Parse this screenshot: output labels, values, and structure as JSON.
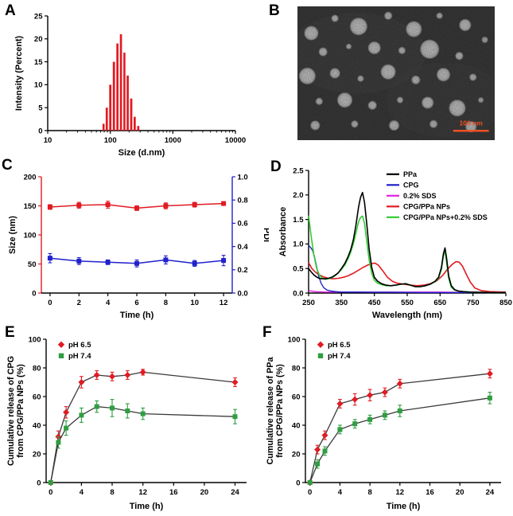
{
  "figure": {
    "background": "#ffffff",
    "panels": [
      {
        "label": "A"
      },
      {
        "label": "B"
      },
      {
        "label": "C"
      },
      {
        "label": "D"
      },
      {
        "label": "E"
      },
      {
        "label": "F"
      }
    ]
  },
  "tem_image": {
    "scale_bar_label": "100 nm",
    "scale_bar_color": "#f05123",
    "background": "#4a4a4a",
    "particles": [
      [
        7,
        20,
        9,
        0.95
      ],
      [
        19,
        9,
        4.5,
        0.9
      ],
      [
        31,
        15,
        11,
        0.97
      ],
      [
        46,
        7,
        5,
        0.88
      ],
      [
        59,
        17,
        10,
        0.96
      ],
      [
        72,
        7,
        4,
        0.85
      ],
      [
        85,
        14,
        7.5,
        0.95
      ],
      [
        95,
        25,
        4,
        0.8
      ],
      [
        13,
        34,
        5.5,
        0.9
      ],
      [
        26,
        30,
        3.5,
        0.85
      ],
      [
        39,
        31,
        8,
        0.95
      ],
      [
        53,
        33,
        4.5,
        0.88
      ],
      [
        67,
        32,
        12,
        0.97
      ],
      [
        82,
        37,
        5,
        0.9
      ],
      [
        5,
        52,
        10.5,
        0.96
      ],
      [
        19,
        50,
        6.5,
        0.92
      ],
      [
        32,
        54,
        4,
        0.86
      ],
      [
        46,
        49,
        9.5,
        0.96
      ],
      [
        60,
        55,
        5.5,
        0.9
      ],
      [
        74,
        51,
        8.5,
        0.95
      ],
      [
        89,
        53,
        4.5,
        0.87
      ],
      [
        11,
        71,
        4.5,
        0.88
      ],
      [
        24,
        70,
        9.5,
        0.96
      ],
      [
        38,
        74,
        5.5,
        0.9
      ],
      [
        52,
        70,
        4,
        0.85
      ],
      [
        66,
        72,
        7.5,
        0.94
      ],
      [
        81,
        76,
        10.5,
        0.96
      ],
      [
        93,
        70,
        3.5,
        0.8
      ],
      [
        29,
        88,
        4.5,
        0.86
      ],
      [
        49,
        89,
        6.5,
        0.92
      ],
      [
        69,
        88,
        5,
        0.88
      ],
      [
        88,
        90,
        7,
        0.93
      ],
      [
        9,
        89,
        6,
        0.9
      ]
    ]
  },
  "chart_data": [
    {
      "id": "A",
      "type": "bar",
      "xscale": "log",
      "xlabel": "Size (d.nm)",
      "ylabel": "Intensity (Percent)",
      "xlim": [
        10,
        10000
      ],
      "xticks": [
        10,
        100,
        1000,
        10000
      ],
      "xtick_labels": [
        "10",
        "100",
        "1000",
        "10000"
      ],
      "ylim": [
        0,
        25
      ],
      "yticks": [
        0,
        5,
        10,
        15,
        20,
        25
      ],
      "ytick_labels": [
        "0",
        "5",
        "10",
        "15",
        "20",
        "25"
      ],
      "bar_color": "#e11b22",
      "bars": {
        "x": [
          78,
          88,
          100,
          114,
          130,
          148,
          168,
          190,
          216,
          246,
          280
        ],
        "values": [
          1.5,
          5,
          10,
          15,
          19,
          21,
          17,
          12,
          7,
          3,
          1
        ]
      }
    },
    {
      "id": "C",
      "type": "line",
      "xlabel": "Time (h)",
      "ylabel": "Size (nm)",
      "ylabel_right": "PDI",
      "xlim": [
        -0.6,
        12.6
      ],
      "xticks": [
        0,
        2,
        4,
        6,
        8,
        10,
        12
      ],
      "xtick_labels": [
        "0",
        "2",
        "4",
        "6",
        "8",
        "10",
        "12"
      ],
      "ylim": [
        0,
        200
      ],
      "yticks": [
        0,
        50,
        100,
        150,
        200
      ],
      "ytick_labels": [
        "0",
        "50",
        "100",
        "150",
        "200"
      ],
      "ylim2": [
        0,
        1
      ],
      "yticks2": [
        0,
        0.2,
        0.4,
        0.6,
        0.8,
        1.0
      ],
      "ytick_labels2": [
        "0.0",
        "0.2",
        "0.4",
        "0.6",
        "0.8",
        "1.0"
      ],
      "axis_colors": {
        "left": "#e11b22",
        "right": "#2121cc",
        "bottom": "#000000"
      },
      "series": [
        {
          "label": "Size",
          "color": "#e11b22",
          "marker": "square",
          "x": [
            0,
            2,
            4,
            6,
            8,
            10,
            12
          ],
          "y": [
            148,
            151,
            152,
            146,
            150,
            152,
            154
          ],
          "err": [
            4,
            5,
            6,
            4,
            5,
            4,
            3
          ]
        },
        {
          "label": "PDI",
          "color": "#2121cc",
          "marker": "square",
          "axis": "right",
          "x": [
            0,
            2,
            4,
            6,
            8,
            10,
            12
          ],
          "y": [
            0.3,
            0.275,
            0.265,
            0.255,
            0.285,
            0.255,
            0.28
          ],
          "err": [
            0.04,
            0.03,
            0.02,
            0.03,
            0.035,
            0.025,
            0.045
          ]
        }
      ]
    },
    {
      "id": "D",
      "type": "line",
      "xlabel": "Wavelength (nm)",
      "ylabel": "Absorbance",
      "xlim": [
        250,
        850
      ],
      "xticks": [
        250,
        350,
        450,
        550,
        650,
        750,
        850
      ],
      "xtick_labels": [
        "250",
        "350",
        "450",
        "550",
        "650",
        "750",
        "850"
      ],
      "ylim": [
        0,
        2.5
      ],
      "yticks": [
        0,
        0.5,
        1.0,
        1.5,
        2.0,
        2.5
      ],
      "ytick_labels": [
        "0.0",
        "0.5",
        "1.0",
        "1.5",
        "2.0",
        "2.5"
      ],
      "legend": [
        {
          "label": "PPa",
          "color": "#000000"
        },
        {
          "label": "CPG",
          "color": "#2121cc"
        },
        {
          "label": "0.2% SDS",
          "color": "#e121e1"
        },
        {
          "label": "CPG/PPa NPs",
          "color": "#e11b22"
        },
        {
          "label": "CPG/PPa NPs+0.2% SDS",
          "color": "#33cc33"
        }
      ],
      "series": [
        {
          "label": "0.2% SDS",
          "color": "#e121e1",
          "line_width": 1.4,
          "x": [
            250,
            270,
            300,
            350,
            400,
            450,
            500,
            550,
            600,
            650,
            700,
            750,
            800,
            850
          ],
          "y": [
            0.05,
            0.03,
            0.02,
            0.02,
            0.02,
            0.02,
            0.02,
            0.02,
            0.02,
            0.02,
            0.015,
            0.015,
            0.01,
            0.01
          ]
        },
        {
          "label": "CPG",
          "color": "#2121cc",
          "line_width": 1.4,
          "x": [
            250,
            256,
            262,
            268,
            274,
            280,
            288,
            296,
            306,
            318,
            332,
            350,
            375,
            400,
            450,
            500,
            600,
            700,
            850
          ],
          "y": [
            0.97,
            0.93,
            0.87,
            0.74,
            0.55,
            0.36,
            0.2,
            0.11,
            0.06,
            0.04,
            0.03,
            0.02,
            0.02,
            0.02,
            0.015,
            0.015,
            0.01,
            0.01,
            0.01
          ]
        },
        {
          "label": "CPG/PPa NPs",
          "color": "#e11b22",
          "line_width": 1.6,
          "x": [
            250,
            260,
            270,
            280,
            295,
            310,
            325,
            340,
            355,
            370,
            385,
            400,
            415,
            430,
            442,
            452,
            462,
            475,
            490,
            505,
            520,
            540,
            560,
            580,
            600,
            620,
            640,
            658,
            672,
            686,
            698,
            708,
            718,
            730,
            742,
            756,
            775,
            800,
            850
          ],
          "y": [
            0.62,
            0.5,
            0.43,
            0.38,
            0.33,
            0.3,
            0.29,
            0.3,
            0.32,
            0.35,
            0.4,
            0.46,
            0.52,
            0.57,
            0.6,
            0.61,
            0.57,
            0.46,
            0.32,
            0.24,
            0.2,
            0.18,
            0.16,
            0.15,
            0.16,
            0.19,
            0.25,
            0.36,
            0.48,
            0.58,
            0.64,
            0.63,
            0.55,
            0.38,
            0.22,
            0.1,
            0.05,
            0.03,
            0.02
          ]
        },
        {
          "label": "CPG/PPa NPs+0.2% SDS",
          "color": "#33cc33",
          "line_width": 1.6,
          "x": [
            250,
            258,
            266,
            274,
            282,
            290,
            300,
            310,
            320,
            330,
            340,
            350,
            360,
            370,
            378,
            386,
            394,
            402,
            408,
            414,
            420,
            427,
            434,
            442,
            450,
            460,
            472,
            486,
            500,
            515,
            530,
            545,
            560,
            575,
            590,
            605,
            620,
            635,
            645,
            654,
            660,
            665,
            670,
            676,
            684,
            694,
            706,
            720,
            740,
            770,
            810,
            850
          ],
          "y": [
            1.58,
            1.15,
            0.78,
            0.52,
            0.38,
            0.31,
            0.28,
            0.29,
            0.31,
            0.35,
            0.41,
            0.48,
            0.57,
            0.7,
            0.83,
            1.0,
            1.22,
            1.45,
            1.54,
            1.57,
            1.42,
            1.05,
            0.68,
            0.4,
            0.26,
            0.2,
            0.17,
            0.15,
            0.15,
            0.16,
            0.18,
            0.19,
            0.16,
            0.13,
            0.13,
            0.15,
            0.18,
            0.23,
            0.3,
            0.48,
            0.75,
            0.86,
            0.62,
            0.3,
            0.12,
            0.06,
            0.04,
            0.03,
            0.02,
            0.015,
            0.01,
            0.01
          ]
        },
        {
          "label": "PPa",
          "color": "#000000",
          "line_width": 1.6,
          "x": [
            250,
            258,
            266,
            274,
            282,
            290,
            300,
            310,
            320,
            330,
            340,
            350,
            360,
            370,
            378,
            386,
            394,
            402,
            408,
            414,
            420,
            427,
            434,
            442,
            450,
            460,
            472,
            486,
            500,
            515,
            530,
            545,
            560,
            575,
            590,
            605,
            620,
            635,
            645,
            654,
            660,
            665,
            670,
            676,
            684,
            694,
            706,
            720,
            740,
            770,
            810,
            850
          ],
          "y": [
            0.5,
            0.43,
            0.37,
            0.33,
            0.3,
            0.29,
            0.29,
            0.3,
            0.32,
            0.36,
            0.41,
            0.5,
            0.6,
            0.74,
            0.88,
            1.08,
            1.38,
            1.75,
            1.95,
            2.05,
            1.85,
            1.4,
            0.9,
            0.52,
            0.32,
            0.24,
            0.19,
            0.16,
            0.15,
            0.16,
            0.18,
            0.19,
            0.16,
            0.13,
            0.13,
            0.15,
            0.18,
            0.24,
            0.32,
            0.52,
            0.8,
            0.92,
            0.7,
            0.35,
            0.15,
            0.07,
            0.04,
            0.03,
            0.02,
            0.015,
            0.01,
            0.01
          ]
        }
      ]
    },
    {
      "id": "E",
      "type": "line",
      "xlabel": "Time (h)",
      "ylabel": [
        "Cumulative release of CPG",
        "from CPG/PPa NPs (%)"
      ],
      "xlim": [
        -0.6,
        25.5
      ],
      "xticks": [
        0,
        4,
        8,
        12,
        16,
        20,
        24
      ],
      "xtick_labels": [
        "0",
        "4",
        "8",
        "12",
        "16",
        "20",
        "24"
      ],
      "ylim": [
        0,
        100
      ],
      "yticks": [
        0,
        20,
        40,
        60,
        80,
        100
      ],
      "ytick_labels": [
        "0",
        "20",
        "40",
        "60",
        "80",
        "100"
      ],
      "legend": [
        {
          "label": "pH 6.5",
          "color": "#e11b22",
          "marker": "diamond"
        },
        {
          "label": "pH 7.4",
          "color": "#2f9e41",
          "marker": "square"
        }
      ],
      "series": [
        {
          "label": "pH 6.5",
          "color": "#e11b22",
          "marker": "diamond",
          "line_color": "#3a3a3a",
          "line_width": 1.3,
          "x": [
            0,
            1,
            2,
            4,
            6,
            8,
            10,
            12,
            24
          ],
          "y": [
            0,
            32,
            49,
            70,
            75,
            74,
            75,
            77,
            70
          ],
          "err": [
            0,
            4,
            4,
            4,
            3,
            3,
            3,
            2,
            3
          ]
        },
        {
          "label": "pH 7.4",
          "color": "#2f9e41",
          "marker": "square",
          "line_color": "#3a3a3a",
          "line_width": 1.3,
          "x": [
            0,
            1,
            2,
            4,
            6,
            8,
            10,
            12,
            24
          ],
          "y": [
            0,
            28,
            38,
            47,
            53,
            52,
            50,
            48,
            46
          ],
          "err": [
            0,
            4,
            5,
            5,
            4,
            6,
            5,
            4,
            5
          ]
        }
      ]
    },
    {
      "id": "F",
      "type": "line",
      "xlabel": "Time (h)",
      "ylabel": [
        "Cumulative release of PPa",
        "from CPG/PPa NPs (%)"
      ],
      "xlim": [
        -0.6,
        25.5
      ],
      "xticks": [
        0,
        4,
        8,
        12,
        16,
        20,
        24
      ],
      "xtick_labels": [
        "0",
        "4",
        "8",
        "12",
        "16",
        "20",
        "24"
      ],
      "ylim": [
        0,
        100
      ],
      "yticks": [
        0,
        20,
        40,
        60,
        80,
        100
      ],
      "ytick_labels": [
        "0",
        "20",
        "40",
        "60",
        "80",
        "100"
      ],
      "legend": [
        {
          "label": "pH 6.5",
          "color": "#e11b22",
          "marker": "diamond"
        },
        {
          "label": "pH 7.4",
          "color": "#2f9e41",
          "marker": "square"
        }
      ],
      "series": [
        {
          "label": "pH 6.5",
          "color": "#e11b22",
          "marker": "diamond",
          "line_color": "#3a3a3a",
          "line_width": 1.3,
          "x": [
            0,
            1,
            2,
            4,
            6,
            8,
            10,
            12,
            24
          ],
          "y": [
            0,
            23,
            33,
            55,
            58,
            61,
            63,
            69,
            76
          ],
          "err": [
            0,
            3,
            3,
            3,
            4,
            4,
            3,
            3,
            3
          ]
        },
        {
          "label": "pH 7.4",
          "color": "#2f9e41",
          "marker": "square",
          "line_color": "#3a3a3a",
          "line_width": 1.3,
          "x": [
            0,
            1,
            2,
            4,
            6,
            8,
            10,
            12,
            24
          ],
          "y": [
            0,
            13,
            22,
            37,
            41,
            44,
            47,
            50,
            59
          ],
          "err": [
            0,
            3,
            3,
            3,
            3,
            3,
            3,
            4,
            4
          ]
        }
      ]
    }
  ]
}
